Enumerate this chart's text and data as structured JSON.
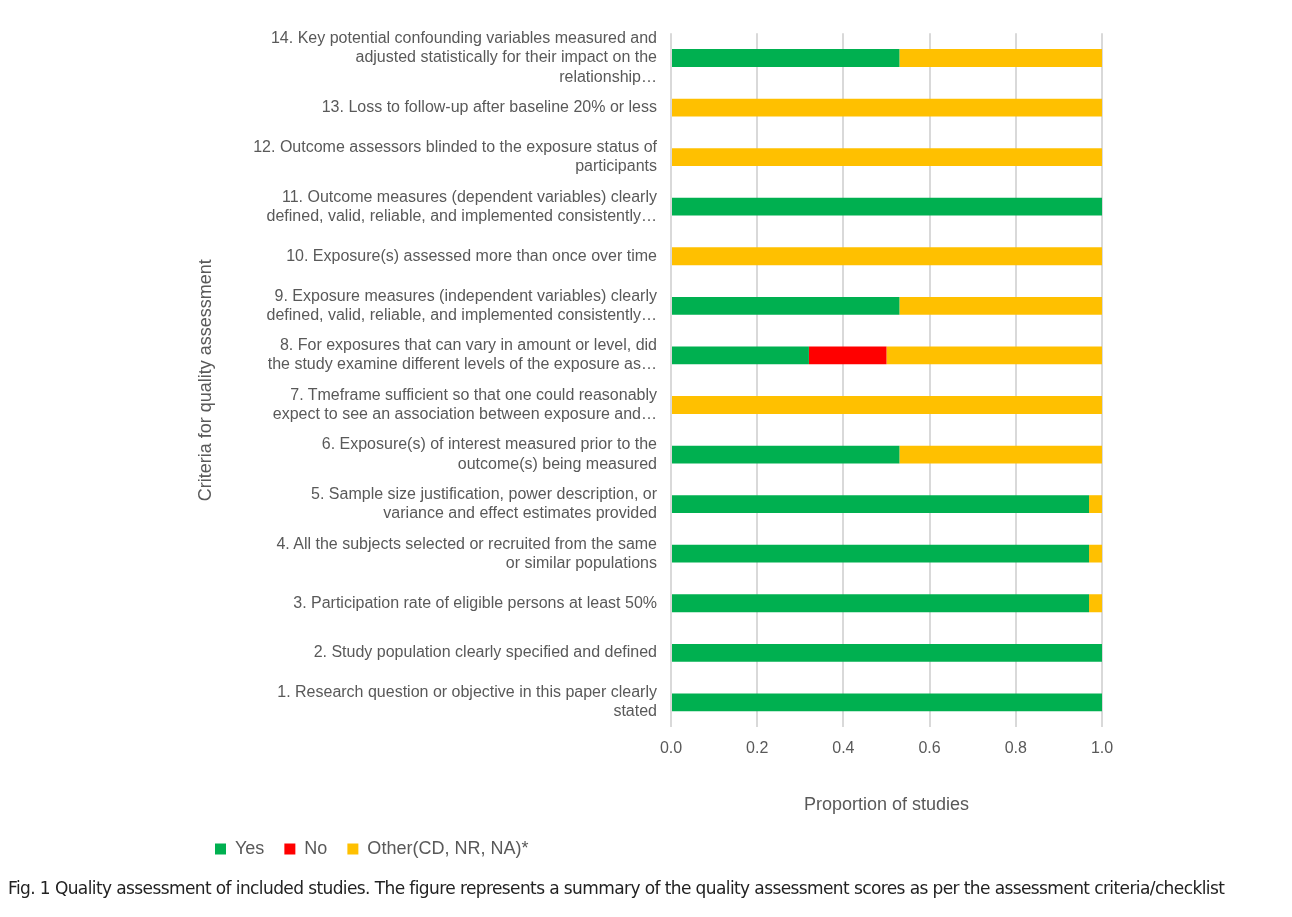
{
  "chart_data": {
    "type": "bar",
    "orientation": "horizontal",
    "stacked": true,
    "categories": [
      "14. Key potential confounding variables measured and adjusted statistically for their impact on the relationship…",
      "13. Loss to follow-up after baseline 20% or less",
      "12. Outcome assessors blinded to the exposure status of participants",
      "11. Outcome measures (dependent variables) clearly defined, valid, reliable, and implemented consistently…",
      "10. Exposure(s) assessed more than once over time",
      "9. Exposure measures (independent variables) clearly defined, valid, reliable, and implemented consistently…",
      "8. For exposures that can vary in amount or level, did the study examine different levels of the exposure as…",
      "7. Tmeframe sufficient so that one could reasonably expect to see an association between exposure and…",
      "6. Exposure(s) of interest measured prior to the outcome(s) being measured",
      "5. Sample size justification, power description, or variance and effect estimates provided",
      "4. All the subjects selected or recruited from the same or similar populations",
      "3. Participation rate of eligible persons at least 50%",
      "2. Study population clearly specified and defined",
      "1. Research question or objective in this paper clearly stated"
    ],
    "series": [
      {
        "name": "Yes",
        "color": "#00b050",
        "values": [
          0.53,
          0,
          0,
          1,
          0,
          0.53,
          0.32,
          0,
          0.53,
          0.97,
          0.97,
          0.97,
          1,
          1
        ]
      },
      {
        "name": "No",
        "color": "#ff0000",
        "values": [
          0,
          0,
          0,
          0,
          0,
          0,
          0.18,
          0,
          0,
          0,
          0,
          0,
          0,
          0
        ]
      },
      {
        "name": "Other(CD, NR, NA)*",
        "color": "#ffc000",
        "values": [
          0.47,
          1,
          1,
          0,
          1,
          0.47,
          0.5,
          1,
          0.47,
          0.03,
          0.03,
          0.03,
          0,
          0
        ]
      }
    ],
    "xlim": [
      0,
      1
    ],
    "xticks": [
      {
        "value": 0,
        "label": "0.0"
      },
      {
        "value": 0.2,
        "label": "0.2"
      },
      {
        "value": 0.4,
        "label": "0.4"
      },
      {
        "value": 0.6,
        "label": "0.6"
      },
      {
        "value": 0.8,
        "label": "0.8"
      },
      {
        "value": 1,
        "label": "1.0"
      }
    ],
    "xlabel": "Proportion of studies",
    "ylabel": "Criteria for quality assessment",
    "grid": "x",
    "legend": "bottom",
    "annotations": [
      "Fig. 1 Quality assessment of included studies. The figure represents a summary of the quality assessment scores as per the assessment criteria/checklist"
    ]
  }
}
